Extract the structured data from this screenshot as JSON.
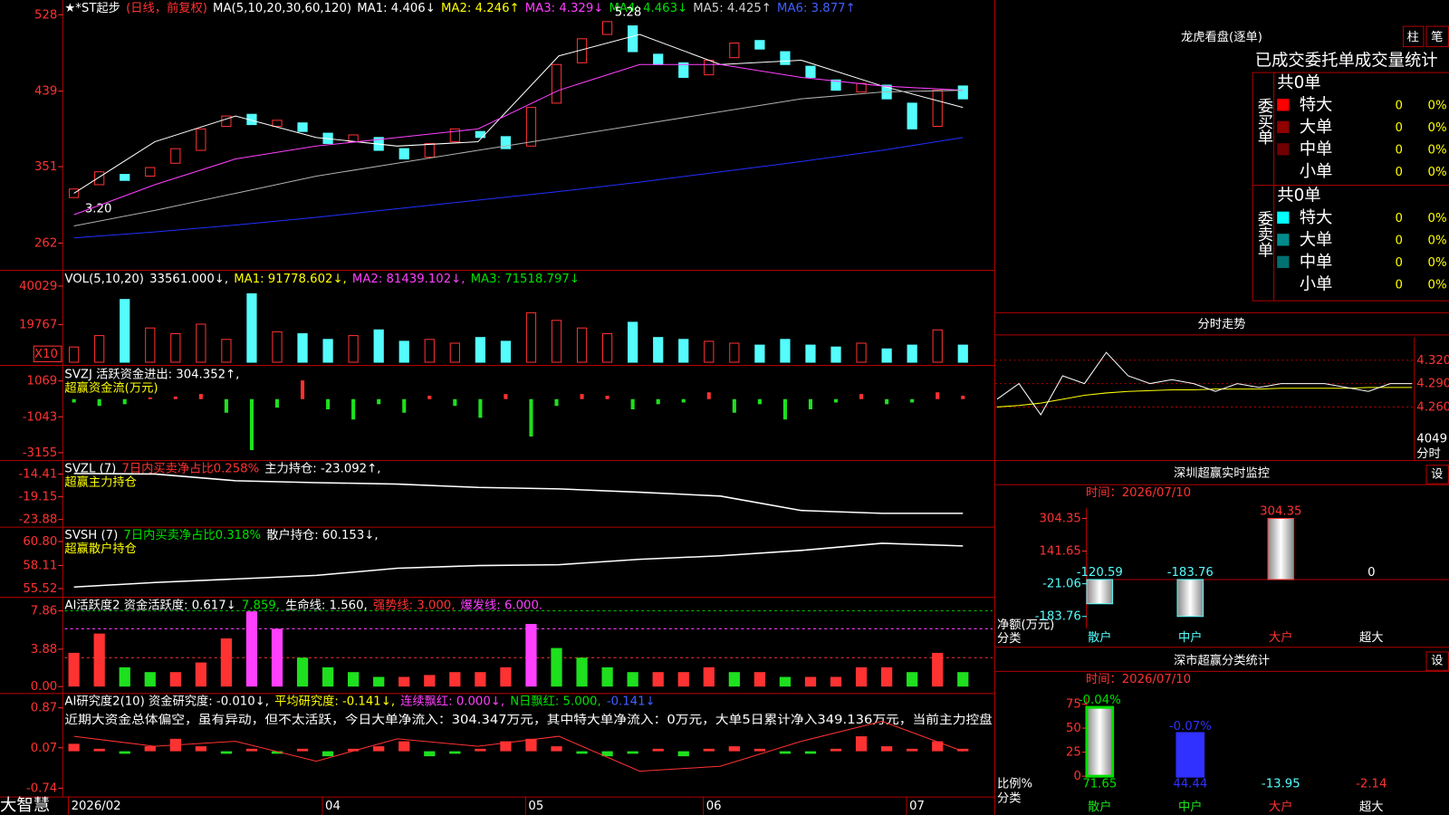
{
  "main": {
    "header": [
      {
        "text": "★*ST起步",
        "color": "#ffffff"
      },
      {
        "text": "(日线，前复权)",
        "color": "#ff3232"
      },
      {
        "text": "MA(5,10,20,30,60,120)",
        "color": "#ffffff"
      },
      {
        "text": "MA1: 4.406↓",
        "color": "#ffffff"
      },
      {
        "text": "MA2: 4.246↑",
        "color": "#ffff00"
      },
      {
        "text": "MA3: 4.329↓",
        "color": "#ff40ff"
      },
      {
        "text": "MA4: 4.463↓",
        "color": "#00e000"
      },
      {
        "text": "MA5: 4.425↑",
        "color": "#d0d0d0"
      },
      {
        "text": "MA6: 3.877↑",
        "color": "#4060ff"
      }
    ],
    "yticks": [
      528,
      439,
      351,
      262
    ],
    "ylim": [
      233,
      543
    ],
    "open": [
      315,
      330,
      342,
      340,
      355,
      370,
      398,
      412,
      398,
      402,
      390,
      380,
      385,
      372,
      362,
      380,
      392,
      386,
      375,
      425,
      472,
      505,
      515,
      482,
      472,
      458,
      478,
      498,
      485,
      468,
      452,
      438,
      446,
      425,
      398,
      445
    ],
    "close": [
      325,
      345,
      335,
      350,
      372,
      395,
      410,
      400,
      405,
      392,
      378,
      388,
      370,
      360,
      378,
      395,
      385,
      372,
      420,
      470,
      500,
      520,
      485,
      470,
      455,
      475,
      495,
      488,
      470,
      455,
      440,
      448,
      430,
      395,
      440,
      430
    ],
    "high_label": "5.28",
    "low_label": "3.20",
    "ma": [
      {
        "color": "#ffffff",
        "values": [
          320,
          380,
          410,
          385,
          375,
          380,
          480,
          505,
          470,
          475,
          445,
          420
        ]
      },
      {
        "color": "#ff40ff",
        "values": [
          295,
          330,
          360,
          375,
          385,
          395,
          440,
          470,
          470,
          455,
          445,
          440
        ]
      },
      {
        "color": "#b0b0b0",
        "values": [
          282,
          300,
          320,
          340,
          355,
          370,
          385,
          400,
          415,
          430,
          438,
          440
        ]
      },
      {
        "color": "#2030ff",
        "values": [
          268,
          275,
          283,
          292,
          302,
          312,
          322,
          333,
          345,
          357,
          370,
          385
        ]
      }
    ]
  },
  "volume": {
    "header": [
      {
        "text": "VOL(5,10,20)",
        "color": "#ffffff"
      },
      {
        "text": "33561.000↓,",
        "color": "#ffffff"
      },
      {
        "text": "MA1: 91778.602↓,",
        "color": "#ffff00"
      },
      {
        "text": "MA2: 81439.102↓,",
        "color": "#ff40ff"
      },
      {
        "text": "MA3: 71518.797↓",
        "color": "#00e000"
      }
    ],
    "yticks": [
      40029,
      19767
    ],
    "ylim": [
      0,
      47600
    ],
    "unit": "X10",
    "values": [
      8000,
      14000,
      33000,
      18000,
      15000,
      20000,
      12000,
      36000,
      16000,
      15000,
      12000,
      14000,
      17000,
      11000,
      12000,
      10000,
      13000,
      11000,
      26000,
      22000,
      18000,
      15000,
      21000,
      13000,
      12000,
      11000,
      10000,
      9000,
      12000,
      9000,
      8000,
      10000,
      7000,
      9000,
      17000,
      9000
    ]
  },
  "svzj": {
    "header": [
      {
        "text": "SVZJ  活跃资金进出: 304.352↑,",
        "color": "#ffffff"
      }
    ],
    "subtitle": "超赢资金流(万元)",
    "yticks": [
      1069,
      -1043,
      -3155
    ],
    "ylim": [
      -3540,
      1900
    ],
    "values": [
      -200,
      -400,
      -300,
      100,
      150,
      300,
      -800,
      -3000,
      -500,
      1100,
      -600,
      -1200,
      -300,
      -800,
      200,
      -400,
      -1100,
      300,
      -2200,
      -400,
      300,
      200,
      -600,
      -300,
      -200,
      400,
      -800,
      -300,
      -1200,
      -600,
      -200,
      300,
      -300,
      -200,
      400,
      200
    ]
  },
  "svzl": {
    "header": [
      {
        "text": "SVZL (7)",
        "color": "#ffffff"
      },
      {
        "text": "7日内买卖净占比0.258%",
        "color": "#ff3232"
      },
      {
        "text": "主力持仓: -23.092↑,",
        "color": "#ffffff"
      }
    ],
    "subtitle": "超赢主力持仓",
    "yticks": [
      -14.41,
      -19.15,
      -23.88
    ],
    "ylim": [
      -25.0,
      -11.9
    ],
    "values": [
      -14.3,
      -14.4,
      -15.8,
      -16.2,
      -16.5,
      -17.2,
      -17.5,
      -18.2,
      -19.0,
      -22.0,
      -22.6,
      -22.6
    ]
  },
  "svsh": {
    "header": [
      {
        "text": "SVSH (7)",
        "color": "#ffffff"
      },
      {
        "text": "7日内买卖净占比0.318%",
        "color": "#00e000"
      },
      {
        "text": "散户持仓: 60.153↓,",
        "color": "#ffffff"
      }
    ],
    "subtitle": "超赢散户持仓",
    "yticks": [
      {
        "value": 60.8,
        "label": "60.80"
      },
      58.11,
      55.52
    ],
    "ylim": [
      54.69,
      62.25
    ],
    "values": [
      55.7,
      56.2,
      56.6,
      57.0,
      57.8,
      58.1,
      58.2,
      58.8,
      59.2,
      59.8,
      60.6,
      60.3
    ]
  },
  "ai_active": {
    "header": [
      {
        "text": "AI活跃度2 资金活跃度: 0.617↓",
        "color": "#ffffff"
      },
      {
        "text": "7.859,",
        "color": "#00e000"
      },
      {
        "text": "生命线: 1.560,",
        "color": "#ffffff"
      },
      {
        "text": "强势线: 3.000,",
        "color": "#ff3232"
      },
      {
        "text": "爆发线: 6.000.",
        "color": "#ff40ff"
      }
    ],
    "yticks": [
      7.86,
      3.88,
      {
        "value": 0,
        "label": "0.00"
      }
    ],
    "ylim": [
      0,
      9.11
    ],
    "ref_lines": [
      {
        "value": 3,
        "color": "#ff3232"
      },
      {
        "value": 6,
        "color": "#ff40ff"
      },
      {
        "value": 7.859,
        "color": "#00c000"
      }
    ],
    "values": [
      3.5,
      5.5,
      2,
      1.5,
      1.5,
      2.5,
      5,
      7.8,
      6,
      3,
      2,
      1.5,
      1,
      1,
      1.2,
      1.5,
      1.5,
      2,
      6.5,
      4,
      3,
      2,
      1.5,
      1.5,
      1.5,
      2,
      1.5,
      1.5,
      1,
      1,
      1,
      2,
      2,
      1.5,
      3.5,
      1.5
    ]
  },
  "ai_research": {
    "header": [
      {
        "text": "AI研究度2(10) 资金研究度: -0.010↓,",
        "color": "#ffffff"
      },
      {
        "text": "平均研究度: -0.141↓,",
        "color": "#ffff00"
      },
      {
        "text": "连续飘红: 0.000↓,",
        "color": "#ff40ff"
      },
      {
        "text": "N日飘红: 5.000,",
        "color": "#00e000"
      },
      {
        "text": "-0.141↓",
        "color": "#4060ff"
      }
    ],
    "message": "近期大资金总体偏空，虽有异动，但不太活跃，今日大单净流入：304.347万元，其中特大单净流入：0万元，大单5日累计净入349.136万元，当前主力控盘",
    "yticks": [
      0.87,
      0.07,
      -0.74
    ],
    "ylim": [
      -0.87,
      1.13
    ],
    "values": [
      0.15,
      0.05,
      -0.05,
      0.1,
      0.25,
      0.1,
      -0.05,
      0.05,
      -0.05,
      0.05,
      -0.1,
      0.05,
      0.1,
      0.2,
      -0.1,
      -0.05,
      0.05,
      0.2,
      0.25,
      0.1,
      -0.05,
      -0.1,
      -0.05,
      0.05,
      -0.1,
      0.05,
      0.1,
      0.05,
      -0.05,
      -0.05,
      0.05,
      0.3,
      0.1,
      0.05,
      0.2,
      0.05
    ],
    "line": [
      0.3,
      0.1,
      0.2,
      -0.2,
      0.25,
      0.1,
      0.3,
      -0.4,
      -0.3,
      0.2,
      0.6,
      0.0
    ]
  },
  "footer": {
    "brand": "大智慧",
    "months": [
      "2026/02",
      "04",
      "05",
      "06",
      "07"
    ],
    "month_index": [
      0,
      10,
      18,
      25,
      33
    ]
  },
  "longhu": {
    "title": "龙虎看盘(逐单)",
    "btn1": "柱",
    "btn2": "笔",
    "subtitle": "已成交委托单成交量统计",
    "sections": [
      {
        "label": "委买单",
        "total": "共0单",
        "rows": [
          {
            "name": "特大",
            "color": "#ff0000",
            "count": 0,
            "pct": "0%"
          },
          {
            "name": "大单",
            "color": "#900000",
            "count": 0,
            "pct": "0%"
          },
          {
            "name": "中单",
            "color": "#700000",
            "count": 0,
            "pct": "0%"
          },
          {
            "name": "小单",
            "color": "#000000",
            "count": 0,
            "pct": "0%"
          }
        ]
      },
      {
        "label": "委卖单",
        "total": "共0单",
        "rows": [
          {
            "name": "特大",
            "color": "#00ffff",
            "count": 0,
            "pct": "0%"
          },
          {
            "name": "大单",
            "color": "#008c8c",
            "count": 0,
            "pct": "0%"
          },
          {
            "name": "中单",
            "color": "#007070",
            "count": 0,
            "pct": "0%"
          },
          {
            "name": "小单",
            "color": "#000000",
            "count": 0,
            "pct": "0%"
          }
        ]
      }
    ]
  },
  "minute": {
    "title": "分时走势",
    "yticks": [
      {
        "value": 4.32,
        "label": "4.320"
      },
      {
        "value": 4.29,
        "label": "4.290"
      },
      {
        "value": 4.26,
        "label": "4.260"
      }
    ],
    "ylim": [
      4.225,
      4.347
    ],
    "vol_label": "4049",
    "unit_label": "分时",
    "price": [
      4.27,
      4.29,
      4.25,
      4.3,
      4.29,
      4.33,
      4.3,
      4.29,
      4.295,
      4.29,
      4.28,
      4.29,
      4.285,
      4.29,
      4.29,
      4.29,
      4.285,
      4.28,
      4.29,
      4.29
    ],
    "avg": [
      4.26,
      4.262,
      4.265,
      4.27,
      4.275,
      4.278,
      4.28,
      4.281,
      4.282,
      4.282,
      4.283,
      4.283,
      4.283,
      4.284,
      4.284,
      4.284,
      4.284,
      4.285,
      4.285,
      4.285
    ]
  },
  "sz_monitor": {
    "title": "深圳超赢实时监控",
    "btn": "设",
    "time": "时间：2026/07/10",
    "yticks": [
      304.35,
      141.65,
      -21.06,
      -183.76
    ],
    "ylim": [
      -197,
      355
    ],
    "categories": [
      "散户",
      "中户",
      "大户",
      "超大"
    ],
    "values": [
      -120.59,
      -183.76,
      304.35,
      0
    ],
    "colors": [
      "#54fcfc",
      "#54fcfc",
      "#ff3232",
      "#ffffff"
    ],
    "ylabel": "净额(万元)",
    "xlabel": "分类"
  },
  "sz_class": {
    "title": "深市超赢分类统计",
    "btn": "设",
    "time": "时间：2026/07/10",
    "yticks": [
      75,
      50,
      25,
      0
    ],
    "ylim": [
      0,
      75
    ],
    "categories": [
      "散户",
      "中户",
      "大户",
      "超大"
    ],
    "values": [
      71.65,
      44.44,
      -13.95,
      -2.14
    ],
    "change_labels": [
      "-0.04%",
      "-0.07%"
    ],
    "colors": [
      "#00e000",
      "#3030ff",
      "#54fcfc",
      "#ff3232"
    ],
    "ylabel": "比例%",
    "xlabel": "分类"
  }
}
